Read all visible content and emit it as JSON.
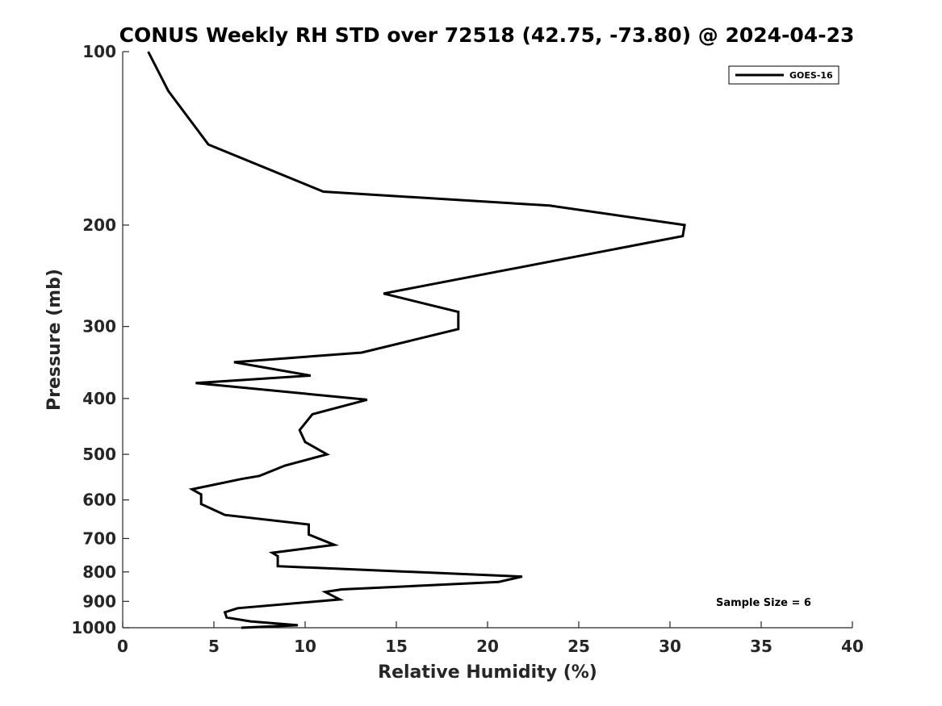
{
  "chart_data": {
    "type": "line",
    "title": "CONUS Weekly RH STD over 72518 (42.75, -73.80) @ 2024-04-23",
    "xlabel": "Relative Humidity (%)",
    "ylabel": "Pressure (mb)",
    "xlim": [
      0,
      40
    ],
    "ylim": [
      100,
      1000
    ],
    "y_scale": "log",
    "y_reversed": true,
    "x_ticks": [
      "0",
      "5",
      "10",
      "15",
      "20",
      "25",
      "30",
      "35",
      "40"
    ],
    "y_ticks": [
      "100",
      "200",
      "300",
      "400",
      "500",
      "600",
      "700",
      "800",
      "900",
      "1000"
    ],
    "legend_position": "top-right",
    "annotation": "Sample Size = 6",
    "series": [
      {
        "name": "GOES-16",
        "color": "#000000",
        "x": [
          1.4,
          2.5,
          4.7,
          11.0,
          23.4,
          30.8,
          30.7,
          14.3,
          18.4,
          18.4,
          13.1,
          6.1,
          10.3,
          4.0,
          13.4,
          10.4,
          9.7,
          10.0,
          11.2,
          8.9,
          7.5,
          6.5,
          3.8,
          4.3,
          4.3,
          5.6,
          10.2,
          10.2,
          11.6,
          8.2,
          8.5,
          8.5,
          21.9,
          20.6,
          12.0,
          11.1,
          11.9,
          6.3,
          5.6,
          5.7,
          7.0,
          9.6,
          6.5
        ],
        "y": [
          100,
          117,
          145,
          175,
          185,
          200,
          209,
          263,
          283,
          303,
          333,
          346,
          365,
          376,
          402,
          426,
          454,
          476,
          500,
          523,
          545,
          552,
          575,
          587,
          610,
          637,
          662,
          689,
          718,
          741,
          751,
          782,
          815,
          833,
          858,
          867,
          893,
          925,
          940,
          960,
          975,
          990,
          1000
        ]
      }
    ]
  }
}
